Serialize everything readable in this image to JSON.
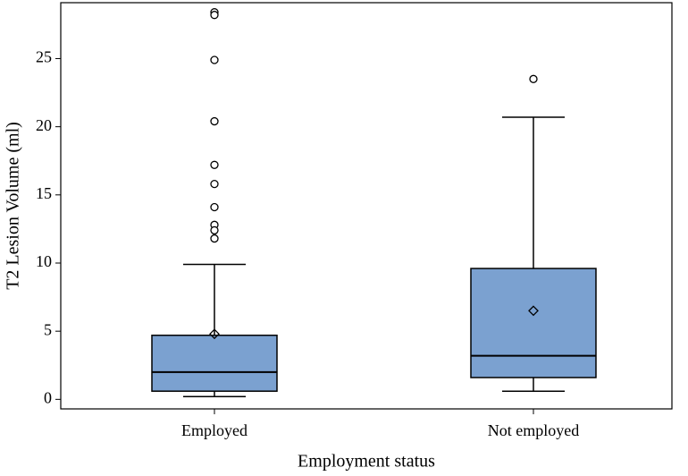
{
  "chart_data": {
    "type": "box",
    "xlabel": "Employment status",
    "ylabel": "T2 Lesion Volume (ml)",
    "categories": [
      "Employed",
      "Not employed"
    ],
    "color": "#7ba1d0",
    "boxes": [
      {
        "min": 0.2,
        "q1": 0.6,
        "median": 2.0,
        "q3": 4.7,
        "max": 9.9,
        "mean": 4.8,
        "outliers": [
          28.4,
          28.2,
          24.9,
          20.4,
          17.2,
          15.8,
          14.1,
          12.8,
          12.4,
          11.8
        ]
      },
      {
        "min": 0.6,
        "q1": 1.6,
        "median": 3.2,
        "q3": 9.6,
        "max": 20.7,
        "mean": 6.5,
        "outliers": [
          23.5
        ]
      }
    ],
    "ylim": [
      -0.7,
      29.1
    ],
    "yticks": [
      0,
      5,
      10,
      15,
      20,
      25
    ]
  }
}
